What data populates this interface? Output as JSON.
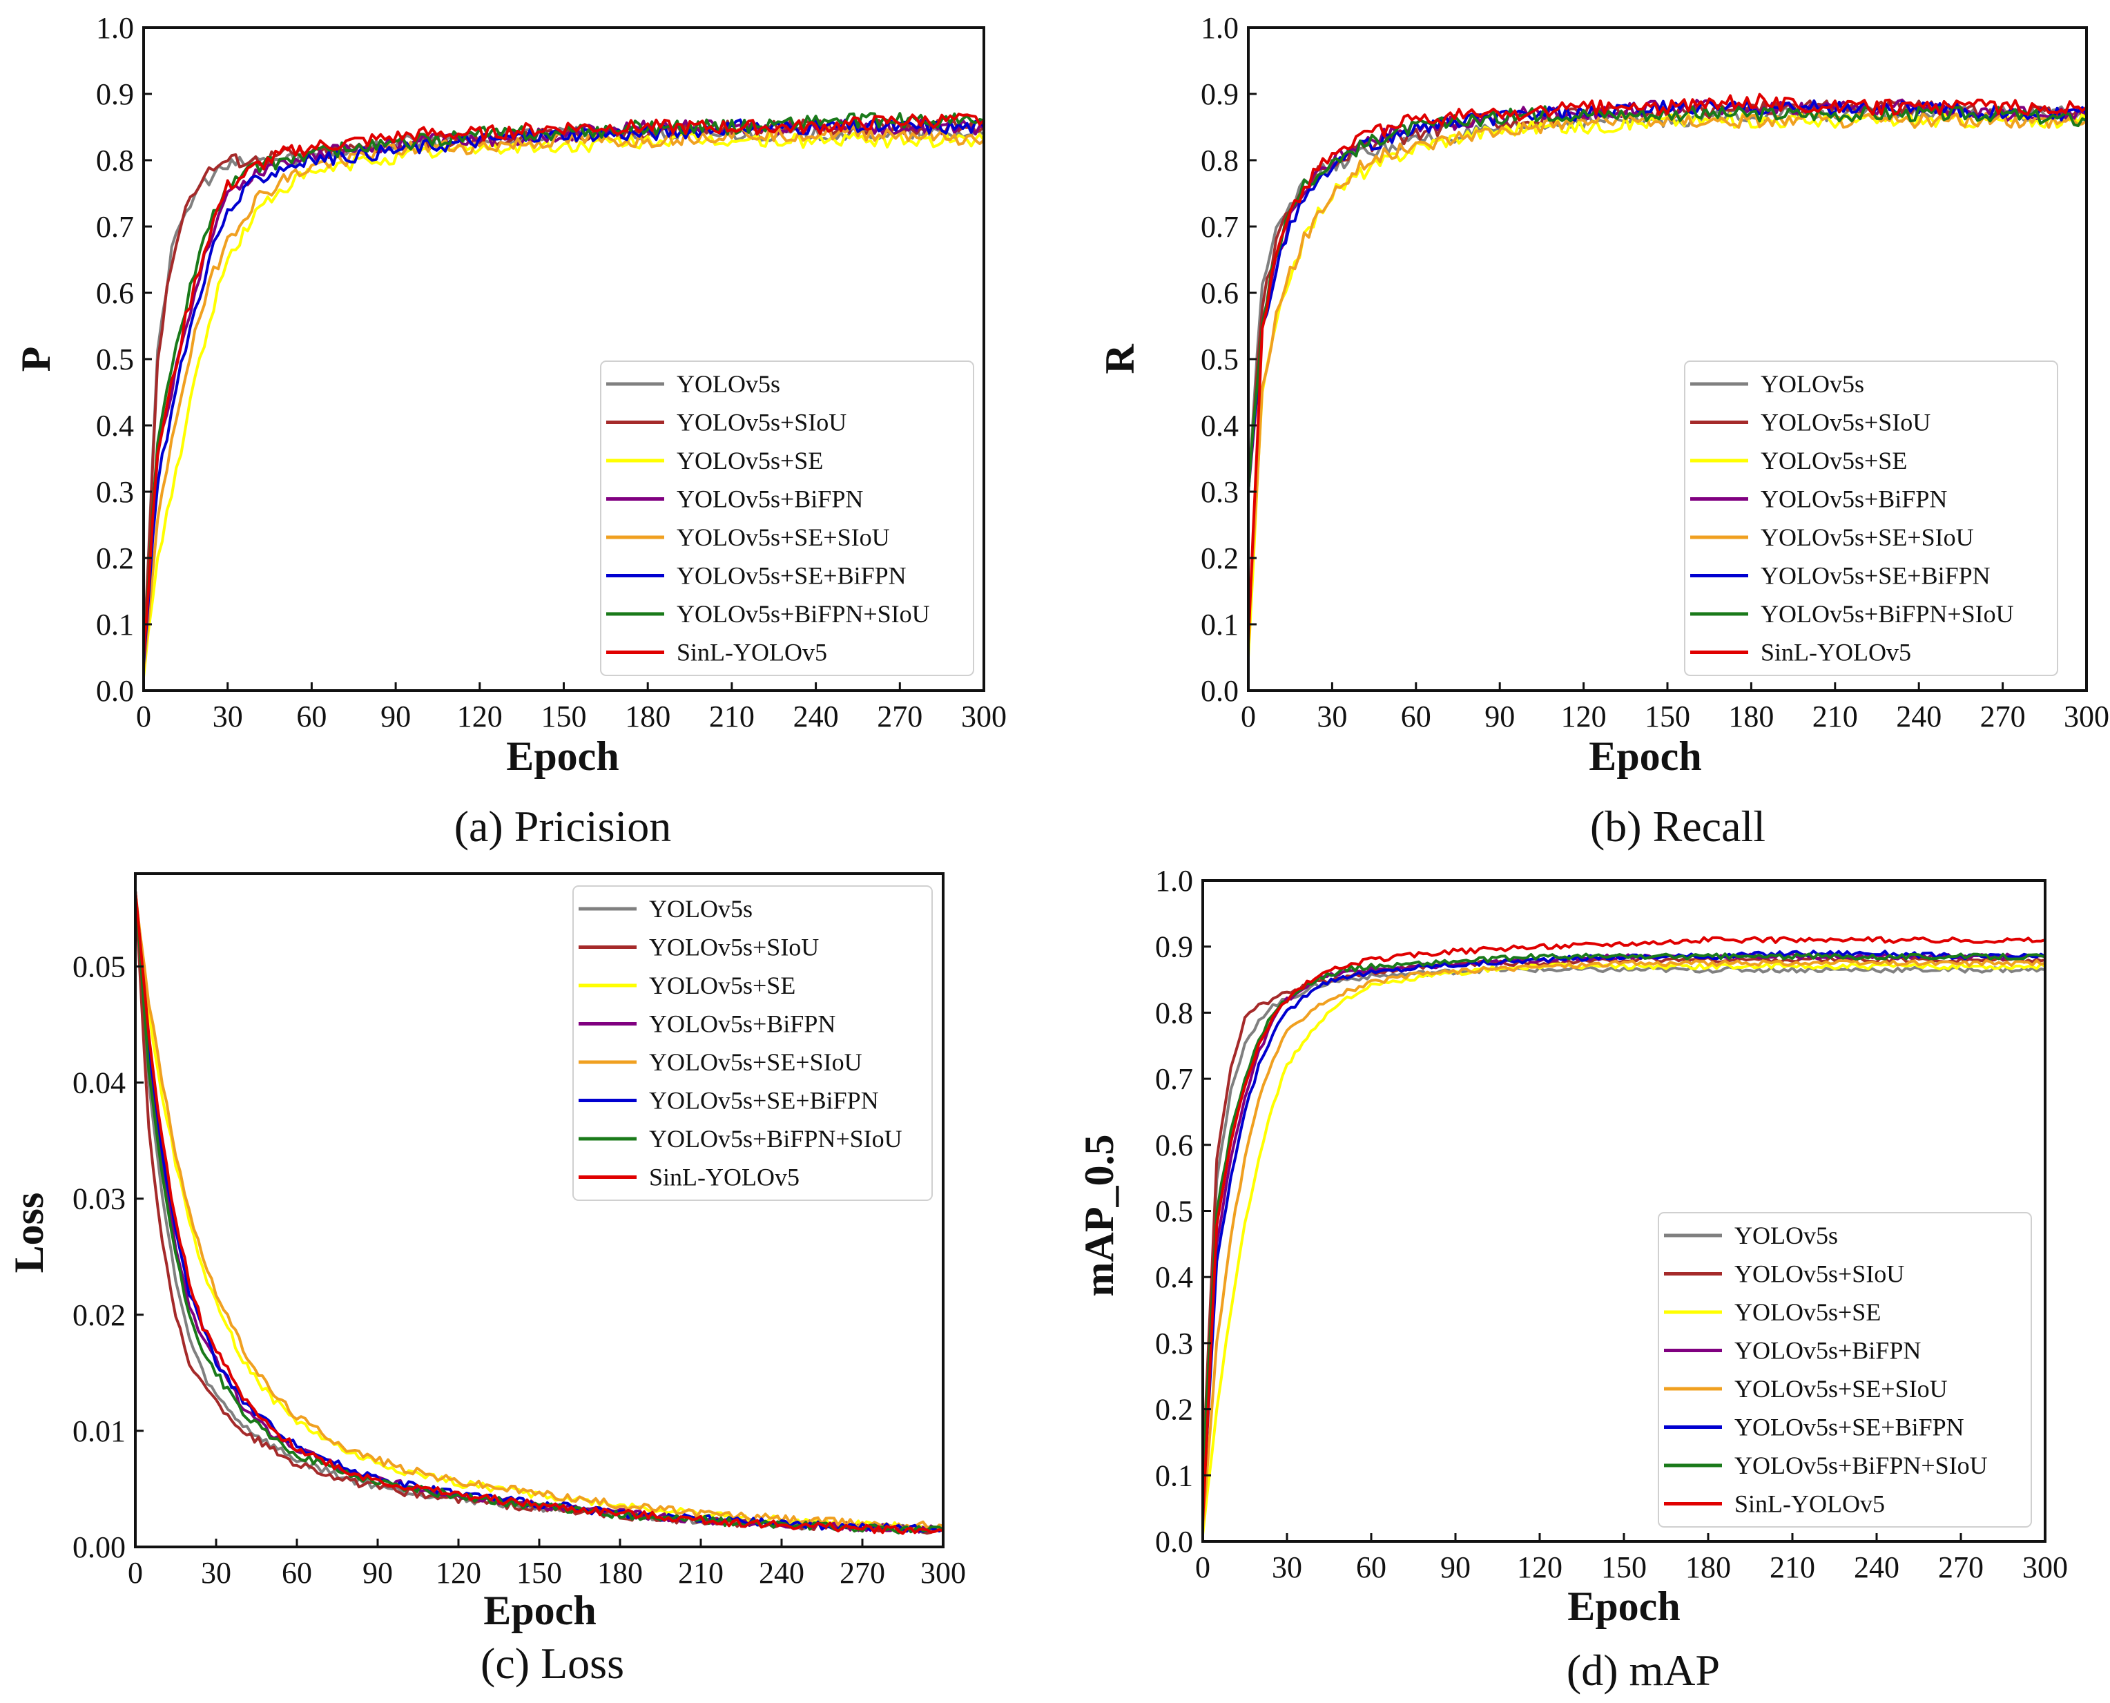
{
  "colors": {
    "YOLOv5s": "#808080",
    "YOLOv5s+SIoU": "#a52a2a",
    "YOLOv5s+SE": "#ffff00",
    "YOLOv5s+BiFPN": "#800080",
    "YOLOv5s+SE+SIoU": "#f0a020",
    "YOLOv5s+SE+BiFPN": "#0000d0",
    "YOLOv5s+BiFPN+SIoU": "#1a7a1a",
    "SinL-YOLOv5": "#e00000"
  },
  "chart_data": [
    {
      "id": "precision",
      "type": "line",
      "caption_tag": "(a)",
      "caption_text": "Pricision",
      "xlabel": "Epoch",
      "ylabel": "P",
      "xlim": [
        0,
        300
      ],
      "ylim": [
        0,
        1
      ],
      "xticks": [
        0,
        30,
        60,
        90,
        120,
        150,
        180,
        210,
        240,
        270,
        300
      ],
      "yticks": [
        0.0,
        0.1,
        0.2,
        0.3,
        0.4,
        0.5,
        0.6,
        0.7,
        0.8,
        0.9,
        1.0
      ],
      "ytick_labels": [
        "0.0",
        "0.1",
        "0.2",
        "0.3",
        "0.4",
        "0.5",
        "0.6",
        "0.7",
        "0.8",
        "0.9",
        "1.0"
      ],
      "legend_position": "center-right",
      "x": [
        0,
        5,
        10,
        15,
        20,
        25,
        30,
        40,
        50,
        60,
        80,
        100,
        120,
        150,
        180,
        210,
        240,
        270,
        300
      ],
      "series": [
        {
          "name": "YOLOv5s",
          "values": [
            0.05,
            0.52,
            0.66,
            0.72,
            0.76,
            0.78,
            0.79,
            0.8,
            0.8,
            0.81,
            0.82,
            0.83,
            0.83,
            0.84,
            0.84,
            0.84,
            0.84,
            0.84,
            0.84
          ]
        },
        {
          "name": "YOLOv5s+SIoU",
          "values": [
            0.05,
            0.5,
            0.65,
            0.73,
            0.77,
            0.79,
            0.8,
            0.8,
            0.81,
            0.81,
            0.82,
            0.83,
            0.83,
            0.84,
            0.84,
            0.85,
            0.85,
            0.85,
            0.85
          ]
        },
        {
          "name": "YOLOv5s+SE",
          "values": [
            0.02,
            0.2,
            0.3,
            0.4,
            0.5,
            0.58,
            0.65,
            0.72,
            0.76,
            0.78,
            0.8,
            0.81,
            0.82,
            0.82,
            0.83,
            0.83,
            0.83,
            0.83,
            0.83
          ]
        },
        {
          "name": "YOLOv5s+BiFPN",
          "values": [
            0.05,
            0.35,
            0.45,
            0.55,
            0.63,
            0.7,
            0.75,
            0.78,
            0.8,
            0.81,
            0.82,
            0.83,
            0.83,
            0.84,
            0.85,
            0.85,
            0.85,
            0.85,
            0.85
          ]
        },
        {
          "name": "YOLOv5s+SE+SIoU",
          "values": [
            0.03,
            0.25,
            0.38,
            0.48,
            0.56,
            0.63,
            0.68,
            0.74,
            0.77,
            0.79,
            0.81,
            0.82,
            0.82,
            0.83,
            0.83,
            0.84,
            0.84,
            0.84,
            0.83
          ]
        },
        {
          "name": "YOLOv5s+SE+BiFPN",
          "values": [
            0.04,
            0.32,
            0.42,
            0.52,
            0.6,
            0.67,
            0.72,
            0.77,
            0.79,
            0.8,
            0.81,
            0.82,
            0.83,
            0.84,
            0.84,
            0.85,
            0.85,
            0.85,
            0.85
          ]
        },
        {
          "name": "YOLOv5s+BiFPN+SIoU",
          "values": [
            0.05,
            0.38,
            0.48,
            0.58,
            0.66,
            0.72,
            0.76,
            0.79,
            0.8,
            0.81,
            0.82,
            0.83,
            0.84,
            0.84,
            0.85,
            0.85,
            0.86,
            0.86,
            0.86
          ]
        },
        {
          "name": "SinL-YOLOv5",
          "values": [
            0.05,
            0.36,
            0.46,
            0.56,
            0.64,
            0.71,
            0.76,
            0.79,
            0.81,
            0.82,
            0.83,
            0.84,
            0.84,
            0.85,
            0.85,
            0.85,
            0.85,
            0.86,
            0.86
          ]
        }
      ]
    },
    {
      "id": "recall",
      "type": "line",
      "caption_tag": "(b)",
      "caption_text": "Recall",
      "xlabel": "Epoch",
      "ylabel": "R",
      "xlim": [
        0,
        300
      ],
      "ylim": [
        0,
        1
      ],
      "xticks": [
        0,
        30,
        60,
        90,
        120,
        150,
        180,
        210,
        240,
        270,
        300
      ],
      "yticks": [
        0.0,
        0.1,
        0.2,
        0.3,
        0.4,
        0.5,
        0.6,
        0.7,
        0.8,
        0.9,
        1.0
      ],
      "ytick_labels": [
        "0.0",
        "0.1",
        "0.2",
        "0.3",
        "0.4",
        "0.5",
        "0.6",
        "0.7",
        "0.8",
        "0.9",
        "1.0"
      ],
      "legend_position": "center-right",
      "x": [
        0,
        5,
        10,
        15,
        20,
        25,
        30,
        40,
        50,
        60,
        80,
        100,
        120,
        150,
        180,
        210,
        240,
        270,
        300
      ],
      "series": [
        {
          "name": "YOLOv5s",
          "values": [
            0.3,
            0.62,
            0.7,
            0.74,
            0.76,
            0.78,
            0.79,
            0.81,
            0.82,
            0.83,
            0.84,
            0.85,
            0.86,
            0.86,
            0.87,
            0.87,
            0.87,
            0.87,
            0.87
          ]
        },
        {
          "name": "YOLOv5s+SIoU",
          "values": [
            0.3,
            0.58,
            0.68,
            0.73,
            0.76,
            0.78,
            0.8,
            0.82,
            0.83,
            0.84,
            0.86,
            0.86,
            0.87,
            0.87,
            0.88,
            0.88,
            0.88,
            0.87,
            0.87
          ]
        },
        {
          "name": "YOLOv5s+SE",
          "values": [
            0.05,
            0.45,
            0.55,
            0.63,
            0.68,
            0.72,
            0.75,
            0.78,
            0.8,
            0.82,
            0.84,
            0.85,
            0.85,
            0.86,
            0.86,
            0.86,
            0.86,
            0.86,
            0.86
          ]
        },
        {
          "name": "YOLOv5s+BiFPN",
          "values": [
            0.3,
            0.55,
            0.65,
            0.71,
            0.75,
            0.78,
            0.8,
            0.82,
            0.84,
            0.85,
            0.86,
            0.87,
            0.87,
            0.88,
            0.88,
            0.88,
            0.88,
            0.87,
            0.87
          ]
        },
        {
          "name": "YOLOv5s+SE+SIoU",
          "values": [
            0.1,
            0.45,
            0.56,
            0.63,
            0.68,
            0.72,
            0.75,
            0.79,
            0.81,
            0.82,
            0.84,
            0.85,
            0.86,
            0.86,
            0.86,
            0.86,
            0.86,
            0.86,
            0.86
          ]
        },
        {
          "name": "YOLOv5s+SE+BiFPN",
          "values": [
            0.3,
            0.54,
            0.64,
            0.7,
            0.74,
            0.77,
            0.79,
            0.82,
            0.83,
            0.85,
            0.86,
            0.87,
            0.87,
            0.88,
            0.88,
            0.88,
            0.88,
            0.87,
            0.87
          ]
        },
        {
          "name": "YOLOv5s+BiFPN+SIoU",
          "values": [
            0.3,
            0.56,
            0.66,
            0.72,
            0.76,
            0.78,
            0.8,
            0.82,
            0.84,
            0.85,
            0.86,
            0.87,
            0.87,
            0.87,
            0.87,
            0.87,
            0.87,
            0.87,
            0.86
          ]
        },
        {
          "name": "SinL-YOLOv5",
          "values": [
            0.07,
            0.55,
            0.66,
            0.72,
            0.76,
            0.79,
            0.81,
            0.83,
            0.85,
            0.86,
            0.87,
            0.87,
            0.88,
            0.88,
            0.89,
            0.88,
            0.88,
            0.88,
            0.88
          ]
        }
      ]
    },
    {
      "id": "loss",
      "type": "line",
      "caption_tag": "(c)",
      "caption_text": "Loss",
      "xlabel": "Epoch",
      "ylabel": "Loss",
      "xlim": [
        0,
        300
      ],
      "ylim": [
        0,
        0.058
      ],
      "xticks": [
        0,
        30,
        60,
        90,
        120,
        150,
        180,
        210,
        240,
        270,
        300
      ],
      "yticks": [
        0.0,
        0.01,
        0.02,
        0.03,
        0.04,
        0.05
      ],
      "ytick_labels": [
        "0.00",
        "0.01",
        "0.02",
        "0.03",
        "0.04",
        "0.05"
      ],
      "legend_position": "top-right",
      "x": [
        0,
        5,
        10,
        15,
        20,
        25,
        30,
        40,
        50,
        60,
        80,
        100,
        120,
        150,
        180,
        210,
        240,
        270,
        300
      ],
      "series": [
        {
          "name": "YOLOv5s",
          "values": [
            0.0565,
            0.04,
            0.03,
            0.023,
            0.018,
            0.015,
            0.013,
            0.0105,
            0.0088,
            0.0075,
            0.0058,
            0.0048,
            0.0042,
            0.0034,
            0.0028,
            0.0023,
            0.0019,
            0.0017,
            0.0015
          ]
        },
        {
          "name": "YOLOv5s+SIoU",
          "values": [
            0.0565,
            0.036,
            0.026,
            0.02,
            0.016,
            0.014,
            0.0125,
            0.01,
            0.0085,
            0.0072,
            0.0056,
            0.0047,
            0.0041,
            0.0033,
            0.0027,
            0.0022,
            0.0019,
            0.0016,
            0.0014
          ]
        },
        {
          "name": "YOLOv5s+SE",
          "values": [
            0.0565,
            0.046,
            0.039,
            0.033,
            0.028,
            0.024,
            0.021,
            0.016,
            0.013,
            0.0108,
            0.008,
            0.0065,
            0.0055,
            0.0045,
            0.0036,
            0.0028,
            0.0023,
            0.0019,
            0.0017
          ]
        },
        {
          "name": "YOLOv5s+BiFPN",
          "values": [
            0.0565,
            0.042,
            0.033,
            0.026,
            0.021,
            0.018,
            0.016,
            0.012,
            0.0098,
            0.0084,
            0.0064,
            0.0053,
            0.0045,
            0.0036,
            0.0029,
            0.0023,
            0.002,
            0.0017,
            0.0015
          ]
        },
        {
          "name": "YOLOv5s+SE+SIoU",
          "values": [
            0.0565,
            0.047,
            0.04,
            0.034,
            0.029,
            0.025,
            0.022,
            0.017,
            0.0135,
            0.0112,
            0.0083,
            0.0067,
            0.0056,
            0.0046,
            0.0036,
            0.0029,
            0.0024,
            0.002,
            0.0018
          ]
        },
        {
          "name": "YOLOv5s+SE+BiFPN",
          "values": [
            0.0565,
            0.043,
            0.034,
            0.027,
            0.022,
            0.019,
            0.016,
            0.0125,
            0.0105,
            0.0088,
            0.0066,
            0.0054,
            0.0046,
            0.0037,
            0.0029,
            0.0024,
            0.002,
            0.0017,
            0.0015
          ]
        },
        {
          "name": "YOLOv5s+BiFPN+SIoU",
          "values": [
            0.0565,
            0.041,
            0.032,
            0.025,
            0.02,
            0.017,
            0.015,
            0.0115,
            0.0095,
            0.008,
            0.0062,
            0.0051,
            0.0044,
            0.0035,
            0.0028,
            0.0023,
            0.0019,
            0.0016,
            0.0014
          ]
        },
        {
          "name": "SinL-YOLOv5",
          "values": [
            0.0565,
            0.044,
            0.035,
            0.028,
            0.023,
            0.019,
            0.017,
            0.0128,
            0.0102,
            0.0085,
            0.0064,
            0.0052,
            0.0045,
            0.0036,
            0.0029,
            0.0023,
            0.0019,
            0.0016,
            0.0014
          ]
        }
      ]
    },
    {
      "id": "map",
      "type": "line",
      "caption_tag": "(d)",
      "caption_text": "mAP",
      "xlabel": "Epoch",
      "ylabel": "mAP_0.5",
      "xlim": [
        0,
        300
      ],
      "ylim": [
        0,
        1
      ],
      "xticks": [
        0,
        30,
        60,
        90,
        120,
        150,
        180,
        210,
        240,
        270,
        300
      ],
      "yticks": [
        0.0,
        0.1,
        0.2,
        0.3,
        0.4,
        0.5,
        0.6,
        0.7,
        0.8,
        0.9,
        1.0
      ],
      "ytick_labels": [
        "0.0",
        "0.1",
        "0.2",
        "0.3",
        "0.4",
        "0.5",
        "0.6",
        "0.7",
        "0.8",
        "0.9",
        "1.0"
      ],
      "legend_position": "lower-right",
      "x": [
        0,
        5,
        10,
        15,
        20,
        25,
        30,
        40,
        50,
        60,
        80,
        100,
        120,
        150,
        180,
        210,
        240,
        270,
        300
      ],
      "series": [
        {
          "name": "YOLOv5s",
          "values": [
            0.1,
            0.55,
            0.68,
            0.75,
            0.79,
            0.81,
            0.82,
            0.84,
            0.85,
            0.855,
            0.86,
            0.865,
            0.865,
            0.865,
            0.865,
            0.865,
            0.865,
            0.865,
            0.865
          ]
        },
        {
          "name": "YOLOv5s+SIoU",
          "values": [
            0.1,
            0.58,
            0.72,
            0.79,
            0.81,
            0.82,
            0.83,
            0.845,
            0.855,
            0.86,
            0.87,
            0.875,
            0.875,
            0.88,
            0.88,
            0.88,
            0.88,
            0.88,
            0.88
          ]
        },
        {
          "name": "YOLOv5s+SE",
          "values": [
            0.01,
            0.2,
            0.35,
            0.48,
            0.58,
            0.66,
            0.72,
            0.78,
            0.82,
            0.84,
            0.855,
            0.865,
            0.87,
            0.87,
            0.87,
            0.87,
            0.87,
            0.87,
            0.87
          ]
        },
        {
          "name": "YOLOv5s+BiFPN",
          "values": [
            0.05,
            0.45,
            0.58,
            0.67,
            0.74,
            0.79,
            0.82,
            0.85,
            0.86,
            0.865,
            0.87,
            0.875,
            0.88,
            0.885,
            0.885,
            0.885,
            0.885,
            0.885,
            0.885
          ]
        },
        {
          "name": "YOLOv5s+SE+SIoU",
          "values": [
            0.02,
            0.3,
            0.46,
            0.58,
            0.67,
            0.73,
            0.77,
            0.81,
            0.83,
            0.845,
            0.86,
            0.865,
            0.87,
            0.875,
            0.875,
            0.875,
            0.875,
            0.875,
            0.875
          ]
        },
        {
          "name": "YOLOv5s+SE+BiFPN",
          "values": [
            0.05,
            0.42,
            0.55,
            0.65,
            0.72,
            0.77,
            0.8,
            0.84,
            0.855,
            0.86,
            0.87,
            0.875,
            0.88,
            0.885,
            0.885,
            0.89,
            0.89,
            0.885,
            0.885
          ]
        },
        {
          "name": "YOLOv5s+BiFPN+SIoU",
          "values": [
            0.1,
            0.5,
            0.62,
            0.7,
            0.76,
            0.8,
            0.82,
            0.85,
            0.865,
            0.87,
            0.875,
            0.88,
            0.885,
            0.885,
            0.885,
            0.885,
            0.885,
            0.885,
            0.885
          ]
        },
        {
          "name": "SinL-YOLOv5",
          "values": [
            0.03,
            0.48,
            0.6,
            0.69,
            0.75,
            0.79,
            0.82,
            0.855,
            0.87,
            0.88,
            0.89,
            0.895,
            0.9,
            0.905,
            0.91,
            0.91,
            0.91,
            0.91,
            0.91
          ]
        }
      ]
    }
  ]
}
